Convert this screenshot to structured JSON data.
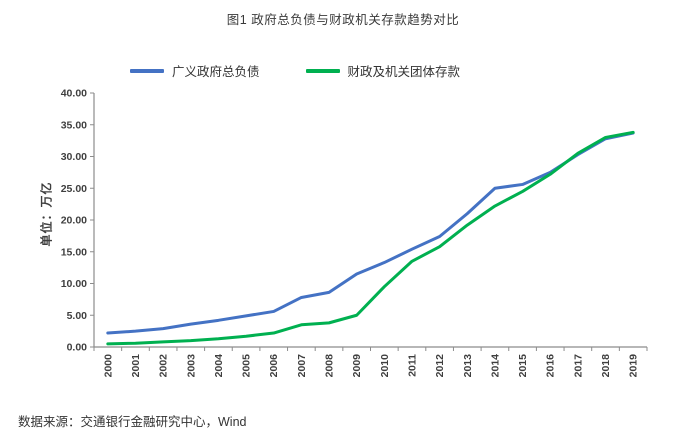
{
  "figure": {
    "title": "图1 政府总负债与财政机关存款趋势对比",
    "source": "数据来源：交通银行金融研究中心，Wind"
  },
  "chart_data": {
    "type": "line",
    "title": "图1 政府总负债与财政机关存款趋势对比",
    "x": [
      "2000",
      "2001",
      "2002",
      "2003",
      "2004",
      "2005",
      "2006",
      "2007",
      "2008",
      "2009",
      "2010",
      "2011",
      "2012",
      "2013",
      "2014",
      "2015",
      "2016",
      "2017",
      "2018",
      "2019"
    ],
    "series": [
      {
        "name": "广义政府总负债",
        "color": "#4472C4",
        "values": [
          2.2,
          2.5,
          2.9,
          3.6,
          4.2,
          4.9,
          5.6,
          7.8,
          8.6,
          11.5,
          13.3,
          15.4,
          17.4,
          21.0,
          25.0,
          25.6,
          27.5,
          30.3,
          32.8,
          33.7
        ]
      },
      {
        "name": "财政及机关团体存款",
        "color": "#00B050",
        "values": [
          0.5,
          0.6,
          0.8,
          1.0,
          1.3,
          1.7,
          2.2,
          3.5,
          3.8,
          5.0,
          9.5,
          13.5,
          15.8,
          19.2,
          22.2,
          24.5,
          27.2,
          30.5,
          33.0,
          33.8
        ]
      }
    ],
    "ylabel": "单位：万亿",
    "xlabel": "",
    "ylim": [
      0,
      40
    ],
    "yticks": [
      "0.00",
      "5.00",
      "10.00",
      "15.00",
      "20.00",
      "25.00",
      "30.00",
      "35.00",
      "40.00"
    ],
    "grid": false,
    "legend_position": "top",
    "axis_color": "#8c8c8c"
  }
}
